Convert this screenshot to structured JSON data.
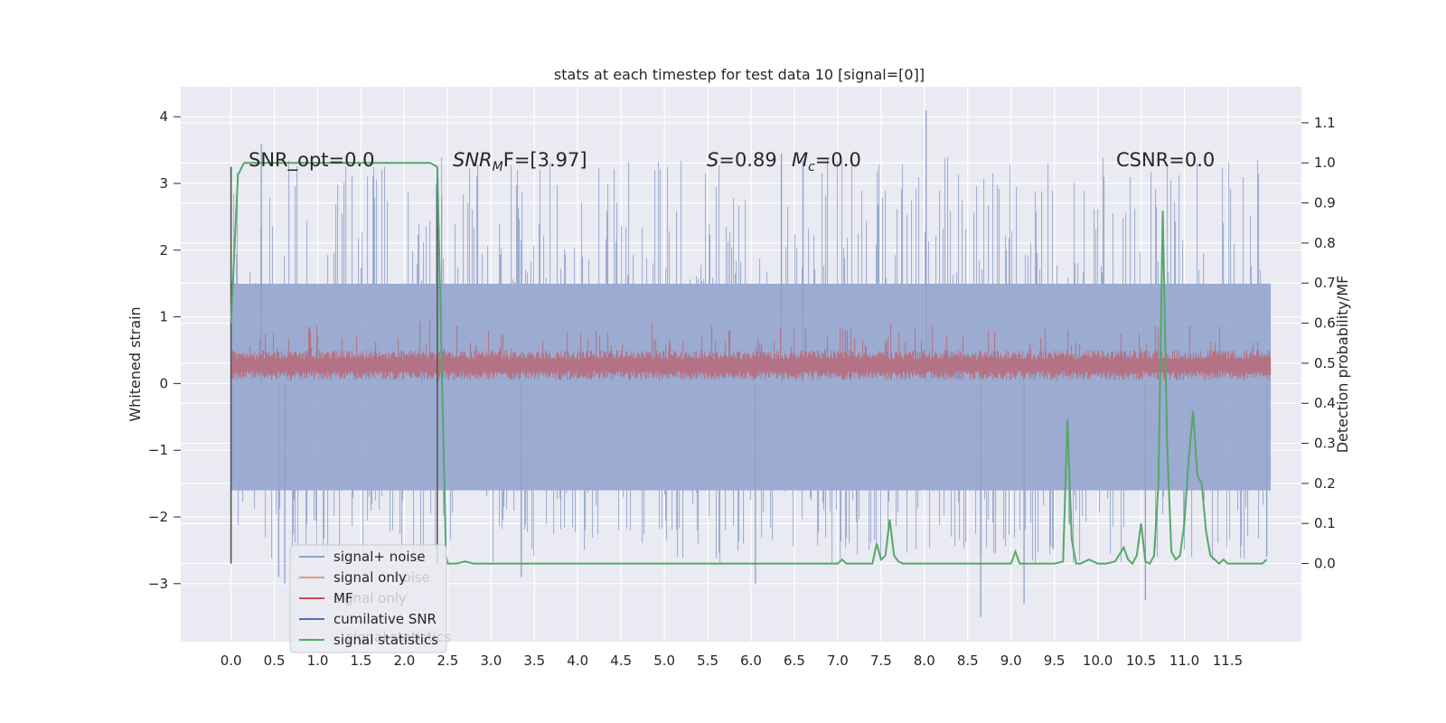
{
  "chart_data": {
    "type": "line",
    "title": "stats at each timestep for test data 10 [signal=[0]]",
    "xlabel": "",
    "ylabel": "Whitened strain",
    "y2label": "Detection probability/MF",
    "xlim": [
      -0.58,
      12.35
    ],
    "ylim": [
      -3.87,
      4.45
    ],
    "y2lim": [
      -0.195,
      1.19
    ],
    "x_ticks": [
      "0.0",
      "0.5",
      "1.0",
      "1.5",
      "2.0",
      "2.5",
      "3.0",
      "3.5",
      "4.0",
      "4.5",
      "5.0",
      "5.5",
      "6.0",
      "6.5",
      "7.0",
      "7.5",
      "8.0",
      "8.5",
      "9.0",
      "9.5",
      "10.0",
      "10.5",
      "11.0",
      "11.5"
    ],
    "y_ticks": [
      "4",
      "3",
      "2",
      "1",
      "0",
      "−1",
      "−2",
      "−3"
    ],
    "y2_ticks": [
      "1.1",
      "1.0",
      "0.9",
      "0.8",
      "0.7",
      "0.6",
      "0.5",
      "0.4",
      "0.3",
      "0.2",
      "0.1",
      "0.0"
    ],
    "annotations": [
      {
        "id": "snr-opt",
        "text": "SNR_opt=0.0"
      },
      {
        "id": "snr-mf",
        "base": "SNR",
        "sub": "M",
        "rest": "F=[3.97]"
      },
      {
        "id": "s-stat",
        "base": "S",
        "rest": "=0.89"
      },
      {
        "id": "mc-stat",
        "base": "M",
        "sub": "c",
        "rest": "=0.0"
      },
      {
        "id": "csnr",
        "text": "CSNR=0.0"
      }
    ],
    "legend": {
      "placement": "lower-left",
      "entries": [
        {
          "label": "signal+ noise",
          "color": "#8da0cb"
        },
        {
          "label": "signal only",
          "color": "#dd9f7f"
        },
        {
          "label": "MF",
          "color": "#c44e52"
        },
        {
          "label": "cumilative SNR",
          "color": "#4c72b0"
        },
        {
          "label": "signal statistics",
          "color": "#55a868"
        }
      ],
      "ghost_labels": [
        "noise",
        "signal only",
        "signal statistics"
      ]
    },
    "series": [
      {
        "name": "signal+ noise",
        "axis": "left",
        "style": "dense-noise",
        "color": "#8da0cb",
        "x_range": [
          0.0,
          12.0
        ],
        "band": [
          -1.6,
          1.5
        ],
        "peaks": [
          {
            "x": 0.35,
            "y": 3.6
          },
          {
            "x": 0.55,
            "y": -2.9
          },
          {
            "x": 0.62,
            "y": -3.0
          },
          {
            "x": 2.43,
            "y": 2.8
          },
          {
            "x": 3.35,
            "y": -2.9
          },
          {
            "x": 6.35,
            "y": 3.45
          },
          {
            "x": 6.6,
            "y": 3.35
          },
          {
            "x": 6.05,
            "y": -3.0
          },
          {
            "x": 8.02,
            "y": 4.1
          },
          {
            "x": 8.65,
            "y": -3.5
          },
          {
            "x": 9.15,
            "y": -3.3
          },
          {
            "x": 10.55,
            "y": -3.25
          },
          {
            "x": 11.95,
            "y": -2.6
          }
        ]
      },
      {
        "name": "MF",
        "axis": "left",
        "style": "dense-noise",
        "color": "#c44e52",
        "x_range": [
          0.0,
          12.0
        ],
        "band": [
          0.05,
          0.5
        ]
      },
      {
        "name": "cumilative SNR",
        "axis": "left",
        "style": "vertical-marks",
        "color": "#555555",
        "x": [
          0.0,
          2.38
        ],
        "y_range": [
          -2.7,
          3.25
        ]
      },
      {
        "name": "signal statistics",
        "axis": "right",
        "color": "#55a868",
        "x": [
          0.0,
          0.08,
          0.15,
          0.3,
          0.5,
          1.0,
          1.5,
          2.0,
          2.3,
          2.38,
          2.43,
          2.48,
          2.5,
          2.52,
          2.6,
          2.7,
          2.8,
          3.0,
          3.5,
          4.0,
          5.0,
          6.0,
          7.0,
          7.05,
          7.1,
          7.2,
          7.3,
          7.4,
          7.45,
          7.5,
          7.55,
          7.6,
          7.65,
          7.7,
          7.75,
          7.8,
          8.5,
          9.0,
          9.05,
          9.1,
          9.15,
          9.5,
          9.6,
          9.65,
          9.7,
          9.75,
          9.8,
          9.9,
          10.0,
          10.1,
          10.2,
          10.3,
          10.35,
          10.4,
          10.45,
          10.5,
          10.55,
          10.6,
          10.65,
          10.7,
          10.75,
          10.8,
          10.85,
          10.9,
          10.95,
          11.0,
          11.05,
          11.1,
          11.15,
          11.2,
          11.25,
          11.3,
          11.35,
          11.4,
          11.45,
          11.5,
          11.6,
          11.7,
          11.8,
          11.85,
          11.9,
          11.95
        ],
        "values": [
          0.6,
          0.97,
          1.0,
          1.0,
          1.0,
          1.0,
          1.0,
          1.0,
          1.0,
          0.99,
          0.5,
          0.02,
          0.0,
          0.0,
          0.0,
          0.005,
          0.0,
          0.0,
          0.0,
          0.0,
          0.0,
          0.0,
          0.0,
          0.01,
          0.0,
          0.0,
          0.0,
          0.0,
          0.05,
          0.01,
          0.02,
          0.11,
          0.02,
          0.005,
          0.0,
          0.0,
          0.0,
          0.0,
          0.03,
          0.0,
          0.0,
          0.0,
          0.005,
          0.36,
          0.06,
          0.0,
          0.0,
          0.01,
          0.0,
          0.0,
          0.005,
          0.04,
          0.01,
          0.0,
          0.02,
          0.1,
          0.005,
          0.0,
          0.02,
          0.2,
          0.88,
          0.3,
          0.03,
          0.01,
          0.02,
          0.1,
          0.26,
          0.38,
          0.22,
          0.2,
          0.08,
          0.02,
          0.01,
          0.0,
          0.01,
          0.0,
          0.0,
          0.0,
          0.0,
          0.0,
          0.0,
          0.01
        ]
      }
    ]
  }
}
